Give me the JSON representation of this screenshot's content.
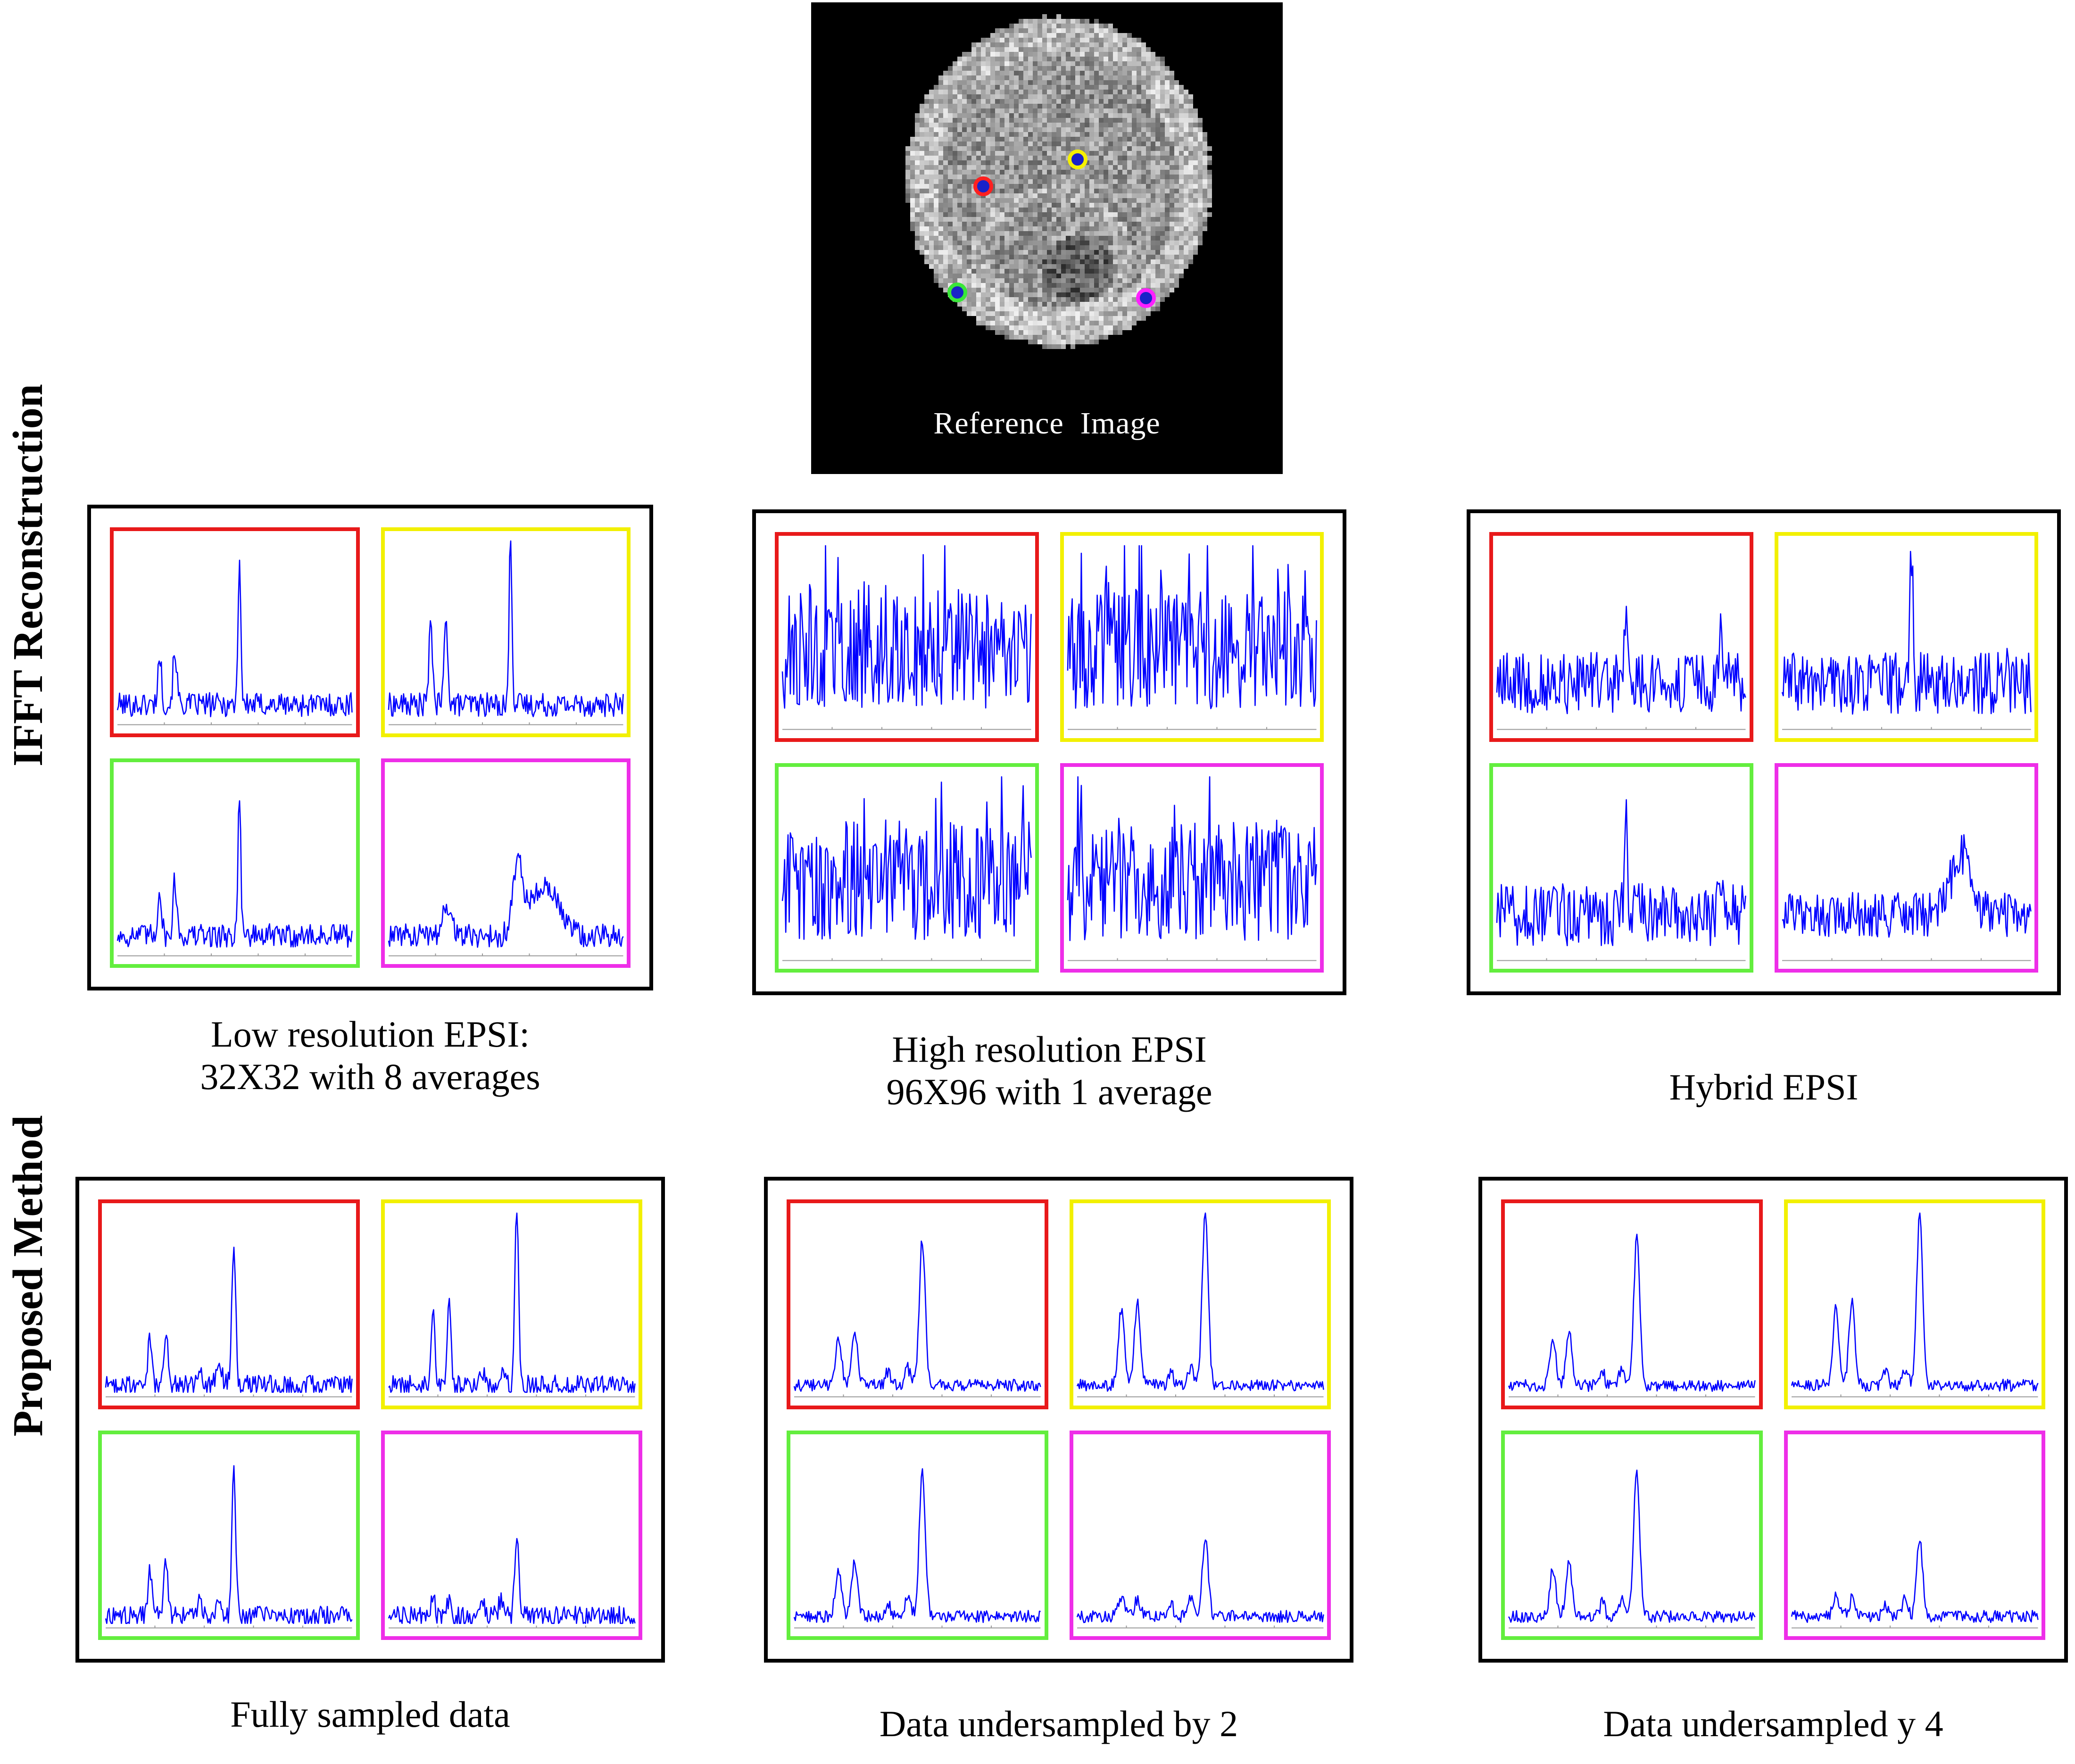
{
  "reference": {
    "caption": "Reference  Image",
    "markers": [
      {
        "name": "red",
        "ring": "#ff2020",
        "center": "#1a22c8"
      },
      {
        "name": "yellow",
        "ring": "#f5f000",
        "center": "#1a22c8"
      },
      {
        "name": "green",
        "ring": "#39e639",
        "center": "#1a22c8"
      },
      {
        "name": "magenta",
        "ring": "#ff20ff",
        "center": "#1a22c8"
      }
    ]
  },
  "colors": {
    "red": "#e8191a",
    "yellow": "#f2f000",
    "green": "#63ee3e",
    "magenta": "#ee2ee8",
    "trace": "#0000ff",
    "axis": "#9a9a9a"
  },
  "row_labels": {
    "top": "IFFT Reconstruction",
    "bottom": "Proposed Method"
  },
  "panels": [
    {
      "id": "low-res",
      "row": "top",
      "caption_lines": [
        "Low resolution EPSI:",
        "32X32 with 8 averages"
      ]
    },
    {
      "id": "high-res",
      "row": "top",
      "caption_lines": [
        "High resolution EPSI",
        "96X96 with 1 average"
      ]
    },
    {
      "id": "hybrid",
      "row": "top",
      "caption_lines": [
        "Hybrid EPSI"
      ]
    },
    {
      "id": "fully-sampled",
      "row": "bottom",
      "caption_lines": [
        "Fully sampled data"
      ]
    },
    {
      "id": "undersampled-2",
      "row": "bottom",
      "caption_lines": [
        "Data undersampled by 2"
      ]
    },
    {
      "id": "undersampled-4",
      "row": "bottom",
      "caption_lines": [
        "Data undersampled y 4"
      ]
    }
  ]
}
